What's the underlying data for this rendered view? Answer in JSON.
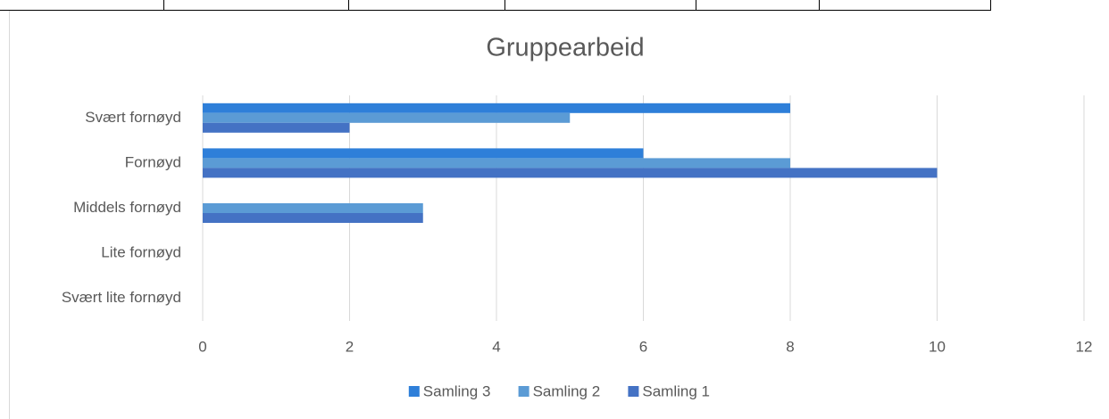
{
  "chart_data": {
    "type": "hbar",
    "title": "Gruppearbeid",
    "categories": [
      "Svært fornøyd",
      "Fornøyd",
      "Middels fornøyd",
      "Lite fornøyd",
      "Svært lite fornøyd"
    ],
    "series": [
      {
        "name": "Samling 3",
        "color": "#2e7fd9",
        "values": [
          8,
          6,
          0,
          0,
          0
        ]
      },
      {
        "name": "Samling 2",
        "color": "#5b9bd5",
        "values": [
          5,
          8,
          3,
          0,
          0
        ]
      },
      {
        "name": "Samling 1",
        "color": "#4472c4",
        "values": [
          2,
          10,
          3,
          0,
          0
        ]
      }
    ],
    "xlim": [
      0,
      12
    ],
    "xticks": [
      0,
      2,
      4,
      6,
      8,
      10,
      12
    ],
    "grid": true,
    "legend": "bottom"
  }
}
